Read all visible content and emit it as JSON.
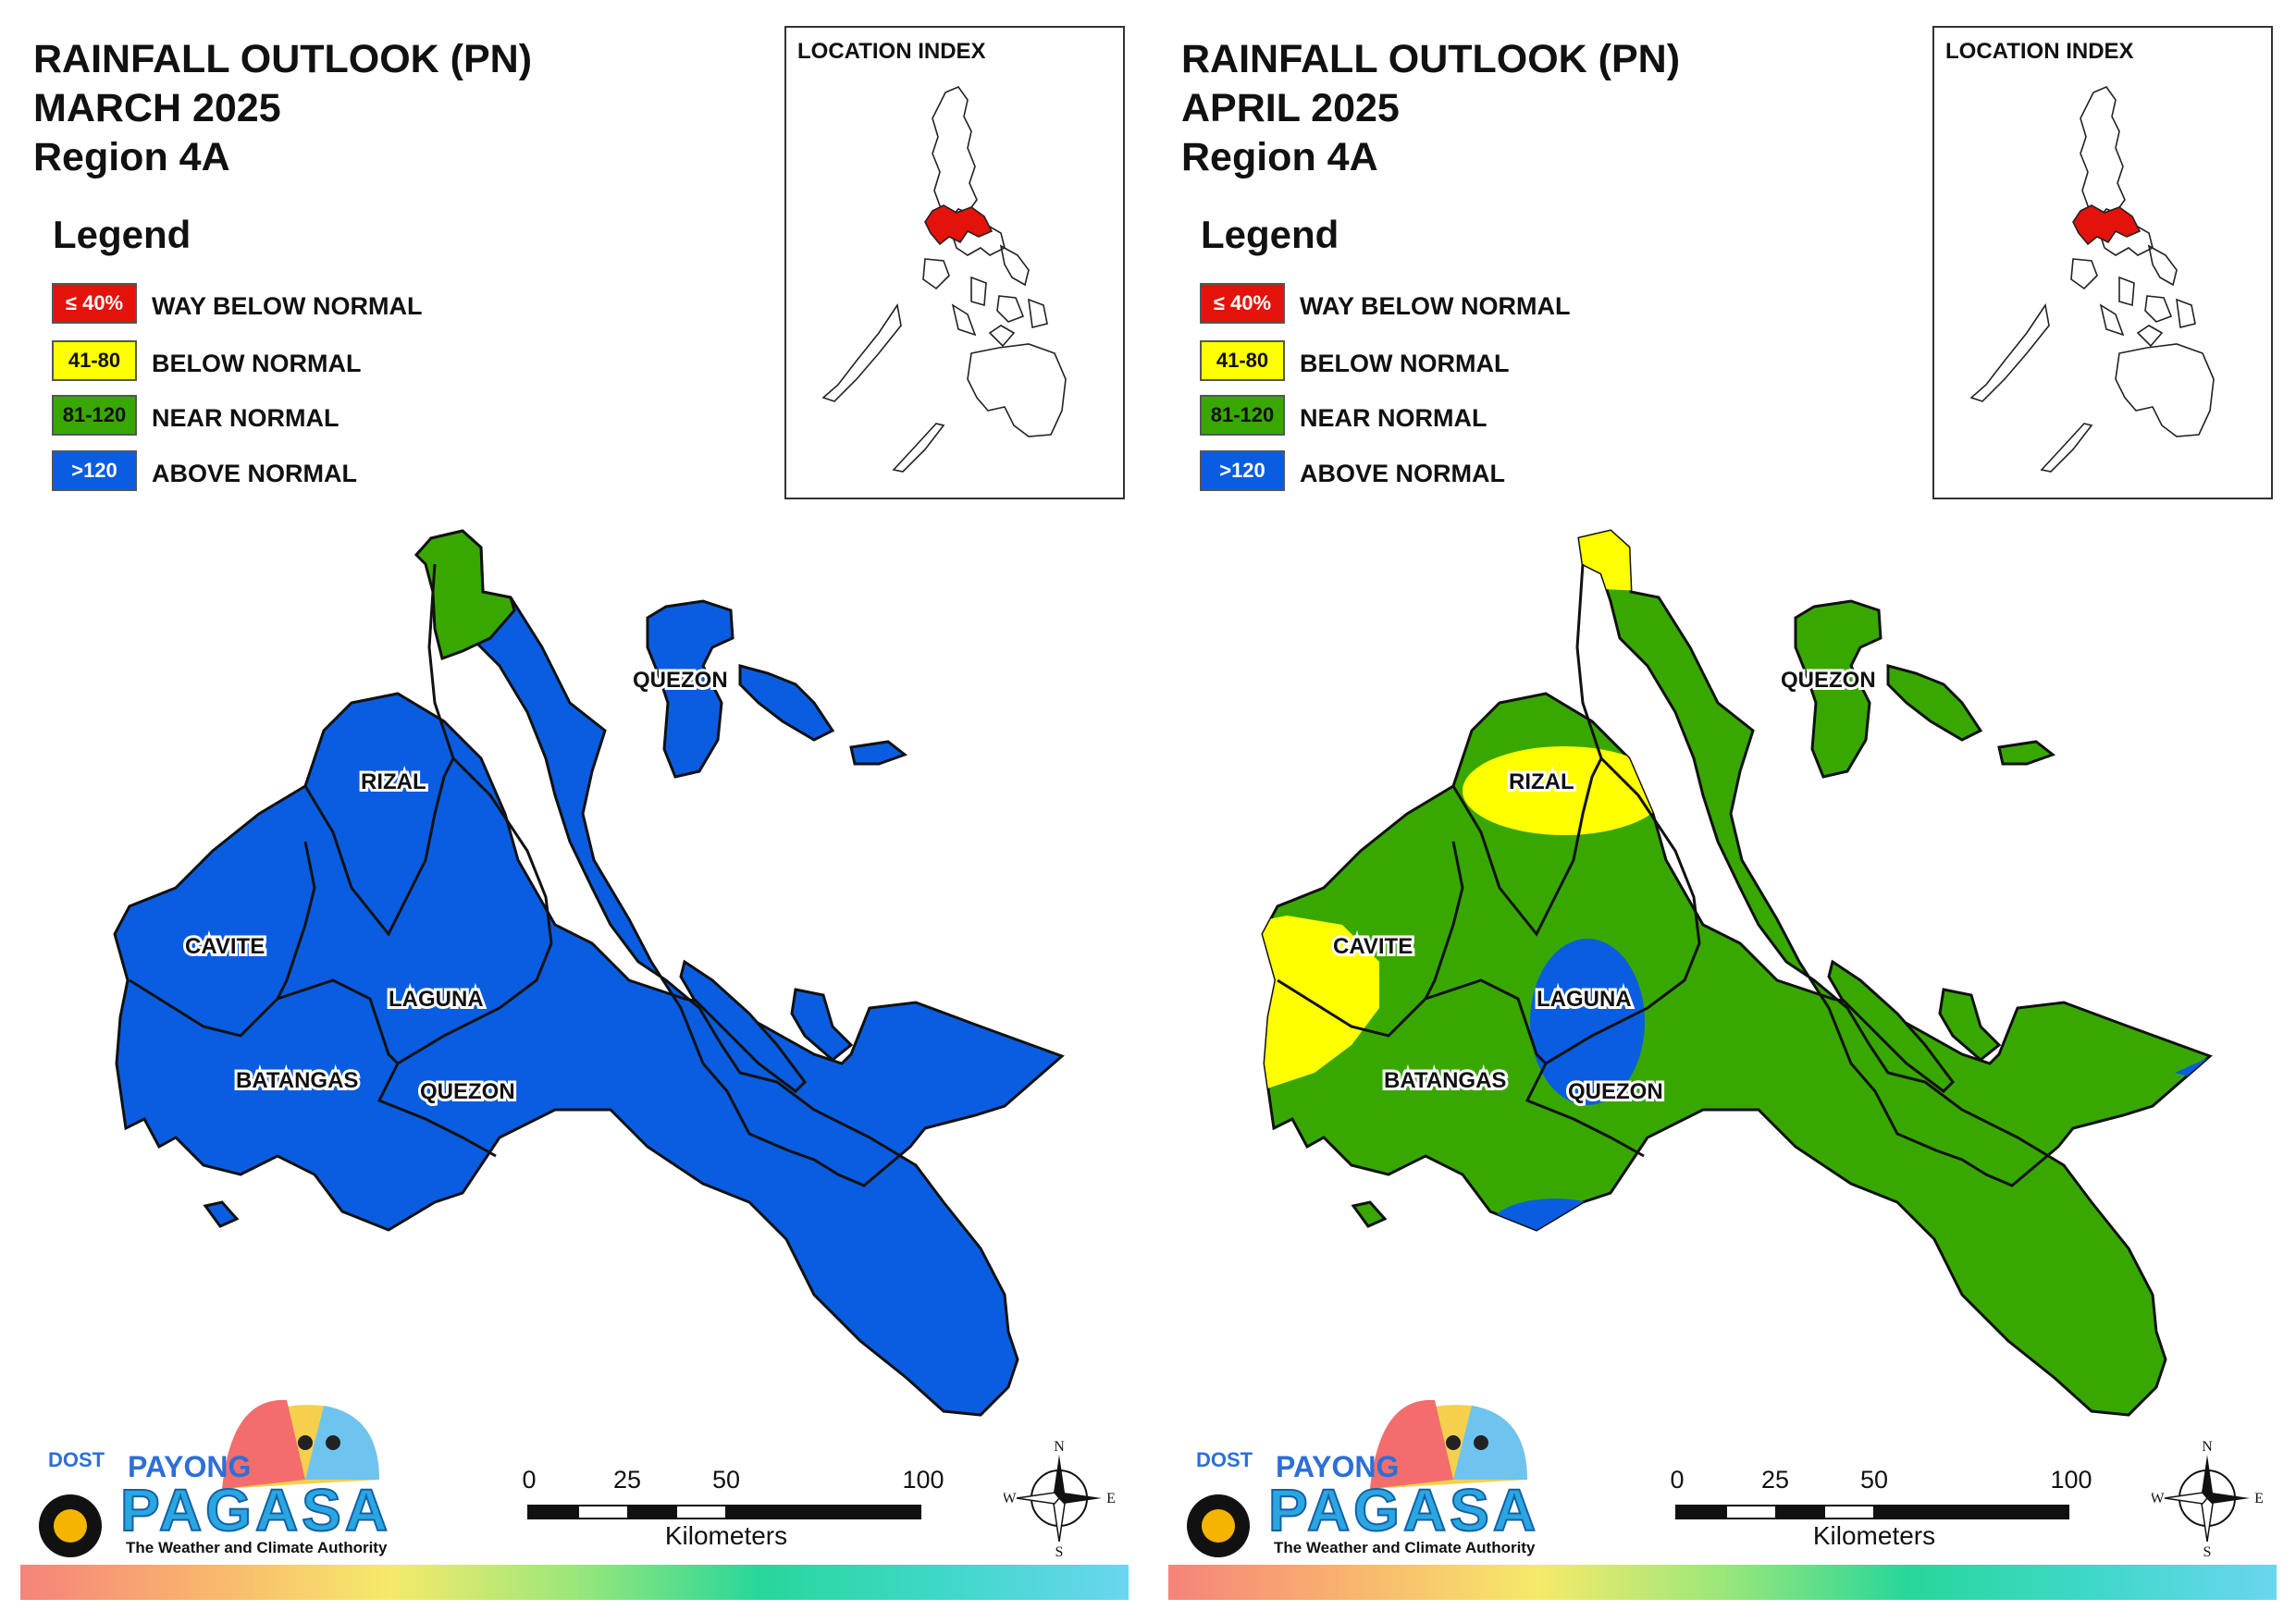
{
  "panels": [
    {
      "title_line1": "RAINFALL OUTLOOK (PN)",
      "title_line2": "MARCH 2025",
      "title_line3": "Region 4A",
      "fill": "above"
    },
    {
      "title_line1": "RAINFALL OUTLOOK (PN)",
      "title_line2": "APRIL 2025",
      "title_line3": "Region 4A",
      "fill": "near"
    }
  ],
  "legend": {
    "title": "Legend",
    "items": [
      {
        "range": "≤ 40%",
        "label": "WAY BELOW NORMAL",
        "color": "#e3120b",
        "text_color": "#ffffff"
      },
      {
        "range": "41-80",
        "label": "BELOW NORMAL",
        "color": "#ffff00",
        "text_color": "#111111"
      },
      {
        "range": "81-120",
        "label": "NEAR NORMAL",
        "color": "#38a800",
        "text_color": "#111111"
      },
      {
        "range": ">120",
        "label": "ABOVE NORMAL",
        "color": "#0a5de0",
        "text_color": "#ffffff"
      }
    ]
  },
  "location_index": {
    "title": "LOCATION INDEX",
    "highlight_color": "#e3120b"
  },
  "provinces": [
    "QUEZON",
    "RIZAL",
    "CAVITE",
    "LAGUNA",
    "BATANGAS",
    "QUEZON",
    "QUEZON"
  ],
  "scale_bar": {
    "ticks": [
      "0",
      "25",
      "50",
      "100"
    ],
    "unit": "Kilometers"
  },
  "compass": {
    "n": "N",
    "s": "S",
    "e": "E",
    "w": "W"
  },
  "logo": {
    "dost": "DOST",
    "payong": "PAYONG",
    "pagasa": "PAGASA",
    "tagline": "The Weather and Climate Authority"
  },
  "colors": {
    "above": "#0a5de0",
    "near": "#38a800",
    "below": "#ffff00",
    "way_below": "#e3120b"
  }
}
